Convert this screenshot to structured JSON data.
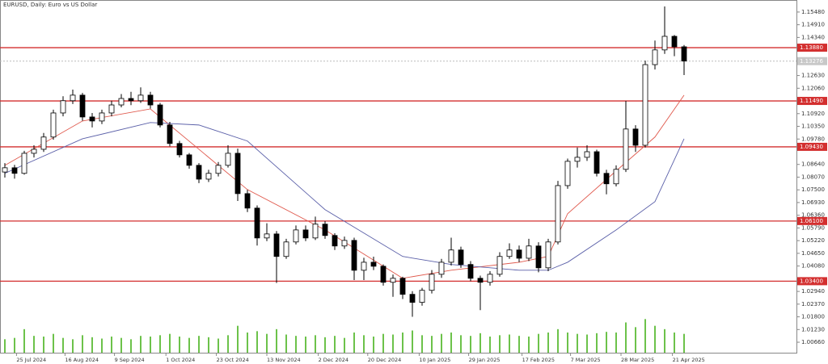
{
  "chart_data": {
    "type": "candlestick",
    "title": "EURUSD, Daily:  Euro vs US Dollar",
    "ylim": [
      1.0019,
      1.1602
    ],
    "yticks": [
      {
        "value": 1.1548,
        "label": "1.15480"
      },
      {
        "value": 1.1491,
        "label": "1.14910"
      },
      {
        "value": 1.1434,
        "label": "1.14340"
      },
      {
        "value": 1.1263,
        "label": "1.12630"
      },
      {
        "value": 1.1206,
        "label": "1.12060"
      },
      {
        "value": 1.1149,
        "label": "1.11490"
      },
      {
        "value": 1.1092,
        "label": "1.10920"
      },
      {
        "value": 1.1035,
        "label": "1.10350"
      },
      {
        "value": 1.0978,
        "label": "1.09780"
      },
      {
        "value": 1.0864,
        "label": "1.08640"
      },
      {
        "value": 1.0807,
        "label": "1.08070"
      },
      {
        "value": 1.075,
        "label": "1.07500"
      },
      {
        "value": 1.0693,
        "label": "1.06930"
      },
      {
        "value": 1.0636,
        "label": "1.06360"
      },
      {
        "value": 1.0579,
        "label": "1.05790"
      },
      {
        "value": 1.0522,
        "label": "1.05220"
      },
      {
        "value": 1.0465,
        "label": "1.04650"
      },
      {
        "value": 1.0408,
        "label": "1.04080"
      },
      {
        "value": 1.0294,
        "label": "1.02940"
      },
      {
        "value": 1.0237,
        "label": "1.02370"
      },
      {
        "value": 1.018,
        "label": "1.01800"
      },
      {
        "value": 1.0123,
        "label": "1.01230"
      },
      {
        "value": 1.0066,
        "label": "1.00660"
      }
    ],
    "xticks": [
      {
        "value": 1.2,
        "label": "25 Jul 2024"
      },
      {
        "value": 6.2,
        "label": "16 Aug 2024"
      },
      {
        "value": 11.3,
        "label": "9 Sep 2024"
      },
      {
        "value": 16.6,
        "label": "1 Oct 2024"
      },
      {
        "value": 21.8,
        "label": "23 Oct 2024"
      },
      {
        "value": 27,
        "label": "13 Nov 2024"
      },
      {
        "value": 32.3,
        "label": "2 Dec 2024"
      },
      {
        "value": 37.4,
        "label": "20 Dec 2024"
      },
      {
        "value": 42.7,
        "label": "10 Jan 2025"
      },
      {
        "value": 47.8,
        "label": "29 Jan 2025"
      },
      {
        "value": 53.3,
        "label": "17 Feb 2025"
      },
      {
        "value": 58.3,
        "label": "7 Mar 2025"
      },
      {
        "value": 63.5,
        "label": "28 Mar 2025"
      },
      {
        "value": 68.8,
        "label": "21 Apr 2025"
      }
    ],
    "levels": [
      {
        "value": 1.1388,
        "label": "1.13880"
      },
      {
        "value": 1.1149,
        "label": "1.11490"
      },
      {
        "value": 1.0943,
        "label": "1.09430"
      },
      {
        "value": 1.061,
        "label": "1.06100"
      },
      {
        "value": 1.034,
        "label": "1.03400"
      }
    ],
    "level_color": "#d32f2f",
    "current": {
      "value": 1.13276,
      "label": "1.13276"
    },
    "up_color": "#ffffff",
    "down_color": "#000000",
    "ohlc": [
      [
        1.083,
        1.087,
        1.0805,
        1.0849
      ],
      [
        1.0849,
        1.0862,
        1.08,
        1.0824
      ],
      [
        1.0824,
        1.0925,
        1.0818,
        1.0914
      ],
      [
        1.0914,
        1.095,
        1.0895,
        1.0932
      ],
      [
        1.0932,
        1.1005,
        1.092,
        1.0987
      ],
      [
        1.0987,
        1.111,
        1.0975,
        1.1095
      ],
      [
        1.1095,
        1.117,
        1.108,
        1.115
      ],
      [
        1.115,
        1.12,
        1.1135,
        1.1175
      ],
      [
        1.1175,
        1.1185,
        1.106,
        1.1077
      ],
      [
        1.1077,
        1.1095,
        1.103,
        1.1059
      ],
      [
        1.1059,
        1.111,
        1.1045,
        1.1095
      ],
      [
        1.1095,
        1.115,
        1.108,
        1.1131
      ],
      [
        1.1131,
        1.118,
        1.112,
        1.116
      ],
      [
        1.116,
        1.119,
        1.113,
        1.115
      ],
      [
        1.115,
        1.121,
        1.114,
        1.1175
      ],
      [
        1.1175,
        1.119,
        1.1115,
        1.1131
      ],
      [
        1.1131,
        1.114,
        1.103,
        1.1041
      ],
      [
        1.1041,
        1.1055,
        1.0945,
        1.0958
      ],
      [
        1.0958,
        1.097,
        1.0895,
        1.0907
      ],
      [
        1.0907,
        1.0915,
        1.0845,
        1.086
      ],
      [
        1.086,
        1.087,
        1.078,
        1.0798
      ],
      [
        1.0798,
        1.084,
        1.0785,
        1.0824
      ],
      [
        1.0824,
        1.0875,
        1.081,
        1.086
      ],
      [
        1.086,
        1.095,
        1.085,
        1.0914
      ],
      [
        1.0914,
        1.0935,
        1.07,
        1.0733
      ],
      [
        1.0733,
        1.075,
        1.065,
        1.0668
      ],
      [
        1.0668,
        1.068,
        1.05,
        1.0534
      ],
      [
        1.0534,
        1.06,
        1.052,
        1.0552
      ],
      [
        1.0552,
        1.0565,
        1.0332,
        1.0451
      ],
      [
        1.0451,
        1.053,
        1.044,
        1.0516
      ],
      [
        1.0516,
        1.059,
        1.0505,
        1.057
      ],
      [
        1.057,
        1.059,
        1.052,
        1.0534
      ],
      [
        1.0534,
        1.063,
        1.0525,
        1.0596
      ],
      [
        1.0596,
        1.061,
        1.053,
        1.0545
      ],
      [
        1.0545,
        1.0555,
        1.048,
        1.0498
      ],
      [
        1.0498,
        1.054,
        1.0485,
        1.0523
      ],
      [
        1.0523,
        1.0535,
        1.0345,
        1.0389
      ],
      [
        1.0389,
        1.0445,
        1.0345,
        1.0425
      ],
      [
        1.0425,
        1.045,
        1.039,
        1.0407
      ],
      [
        1.0407,
        1.0415,
        1.032,
        1.0335
      ],
      [
        1.0335,
        1.037,
        1.027,
        1.0353
      ],
      [
        1.0353,
        1.036,
        1.026,
        1.0281
      ],
      [
        1.0281,
        1.0295,
        1.018,
        1.0245
      ],
      [
        1.0245,
        1.031,
        1.023,
        1.0299
      ],
      [
        1.0299,
        1.039,
        1.0285,
        1.0371
      ],
      [
        1.0371,
        1.044,
        1.0355,
        1.0425
      ],
      [
        1.0425,
        1.0535,
        1.041,
        1.048
      ],
      [
        1.048,
        1.0495,
        1.04,
        1.0415
      ],
      [
        1.0415,
        1.043,
        1.034,
        1.0353
      ],
      [
        1.0353,
        1.0365,
        1.021,
        1.0335
      ],
      [
        1.0335,
        1.0385,
        1.032,
        1.0371
      ],
      [
        1.0371,
        1.047,
        1.036,
        1.0451
      ],
      [
        1.0451,
        1.051,
        1.044,
        1.048
      ],
      [
        1.048,
        1.05,
        1.0425,
        1.0443
      ],
      [
        1.0443,
        1.053,
        1.043,
        1.0498
      ],
      [
        1.0498,
        1.0515,
        1.038,
        1.04
      ],
      [
        1.04,
        1.053,
        1.0385,
        1.0516
      ],
      [
        1.0516,
        1.079,
        1.0505,
        1.0769
      ],
      [
        1.0769,
        1.089,
        1.0755,
        1.0878
      ],
      [
        1.0878,
        1.094,
        1.085,
        1.0896
      ],
      [
        1.0896,
        1.095,
        1.088,
        1.0921
      ],
      [
        1.0921,
        1.093,
        1.081,
        1.0824
      ],
      [
        1.0824,
        1.084,
        1.073,
        1.0777
      ],
      [
        1.0777,
        1.086,
        1.0765,
        1.0842
      ],
      [
        1.0842,
        1.1149,
        1.083,
        1.1023
      ],
      [
        1.1023,
        1.104,
        1.092,
        1.095
      ],
      [
        1.095,
        1.133,
        1.094,
        1.1312
      ],
      [
        1.1312,
        1.142,
        1.129,
        1.1378
      ],
      [
        1.1378,
        1.1573,
        1.136,
        1.1439
      ],
      [
        1.1439,
        1.1445,
        1.135,
        1.1392
      ],
      [
        1.1392,
        1.14,
        1.1265,
        1.1328
      ]
    ],
    "series": [
      {
        "color": "#e05a4e",
        "x": [
          0,
          8,
          15,
          20,
          25,
          33,
          41,
          46,
          53,
          56,
          58,
          63,
          67,
          70
        ],
        "values": [
          1.086,
          1.1059,
          1.1113,
          1.0932,
          1.0751,
          1.057,
          1.0353,
          1.0389,
          1.0425,
          1.0451,
          1.0643,
          1.0835,
          1.0987,
          1.1175
        ]
      },
      {
        "color": "#5a5fa8",
        "x": [
          0,
          8,
          15,
          20,
          25,
          33,
          41,
          46,
          53,
          56,
          58,
          63,
          67,
          70
        ],
        "values": [
          1.0824,
          1.0979,
          1.1052,
          1.1041,
          1.0969,
          1.0661,
          1.0451,
          1.0415,
          1.0389,
          1.0389,
          1.0425,
          1.057,
          1.0697,
          1.0979
        ]
      }
    ],
    "volumes": [
      20,
      22,
      35,
      25,
      24,
      28,
      22,
      20,
      26,
      23,
      21,
      24,
      22,
      20,
      25,
      24,
      26,
      28,
      24,
      22,
      25,
      23,
      21,
      26,
      40,
      30,
      32,
      28,
      35,
      27,
      25,
      24,
      26,
      23,
      25,
      22,
      30,
      26,
      24,
      28,
      27,
      30,
      33,
      26,
      25,
      28,
      30,
      26,
      25,
      29,
      24,
      26,
      27,
      25,
      24,
      28,
      30,
      35,
      30,
      28,
      27,
      29,
      31,
      30,
      45,
      38,
      50,
      40,
      35,
      30,
      28
    ],
    "volume_ylim": [
      0,
      120
    ],
    "volume_color": "#6cc24a"
  }
}
